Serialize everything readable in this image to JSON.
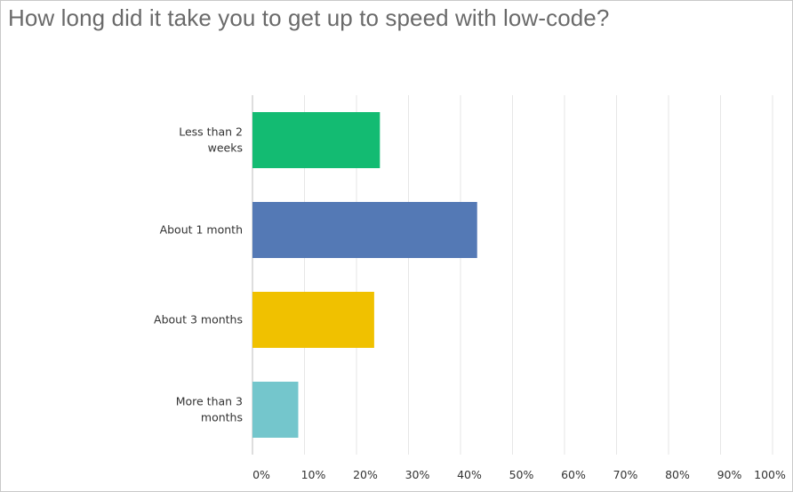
{
  "chart_data": {
    "type": "bar",
    "orientation": "horizontal",
    "title": "How long did it take you to get up to speed with low-code?",
    "categories": [
      [
        "Less than 2",
        "weeks"
      ],
      [
        "About 1 month"
      ],
      [
        "About 3 months"
      ],
      [
        "More than 3",
        "months"
      ]
    ],
    "values": [
      24.5,
      43.2,
      23.4,
      8.8
    ],
    "unit": "%",
    "xlim": [
      0,
      100
    ],
    "xticks": [
      "0%",
      "10%",
      "20%",
      "30%",
      "40%",
      "50%",
      "60%",
      "70%",
      "80%",
      "90%",
      "100%"
    ],
    "colors": [
      "#13bb72",
      "#5479b5",
      "#f0c100",
      "#74c6cc"
    ],
    "grid": true,
    "legend": "none"
  }
}
